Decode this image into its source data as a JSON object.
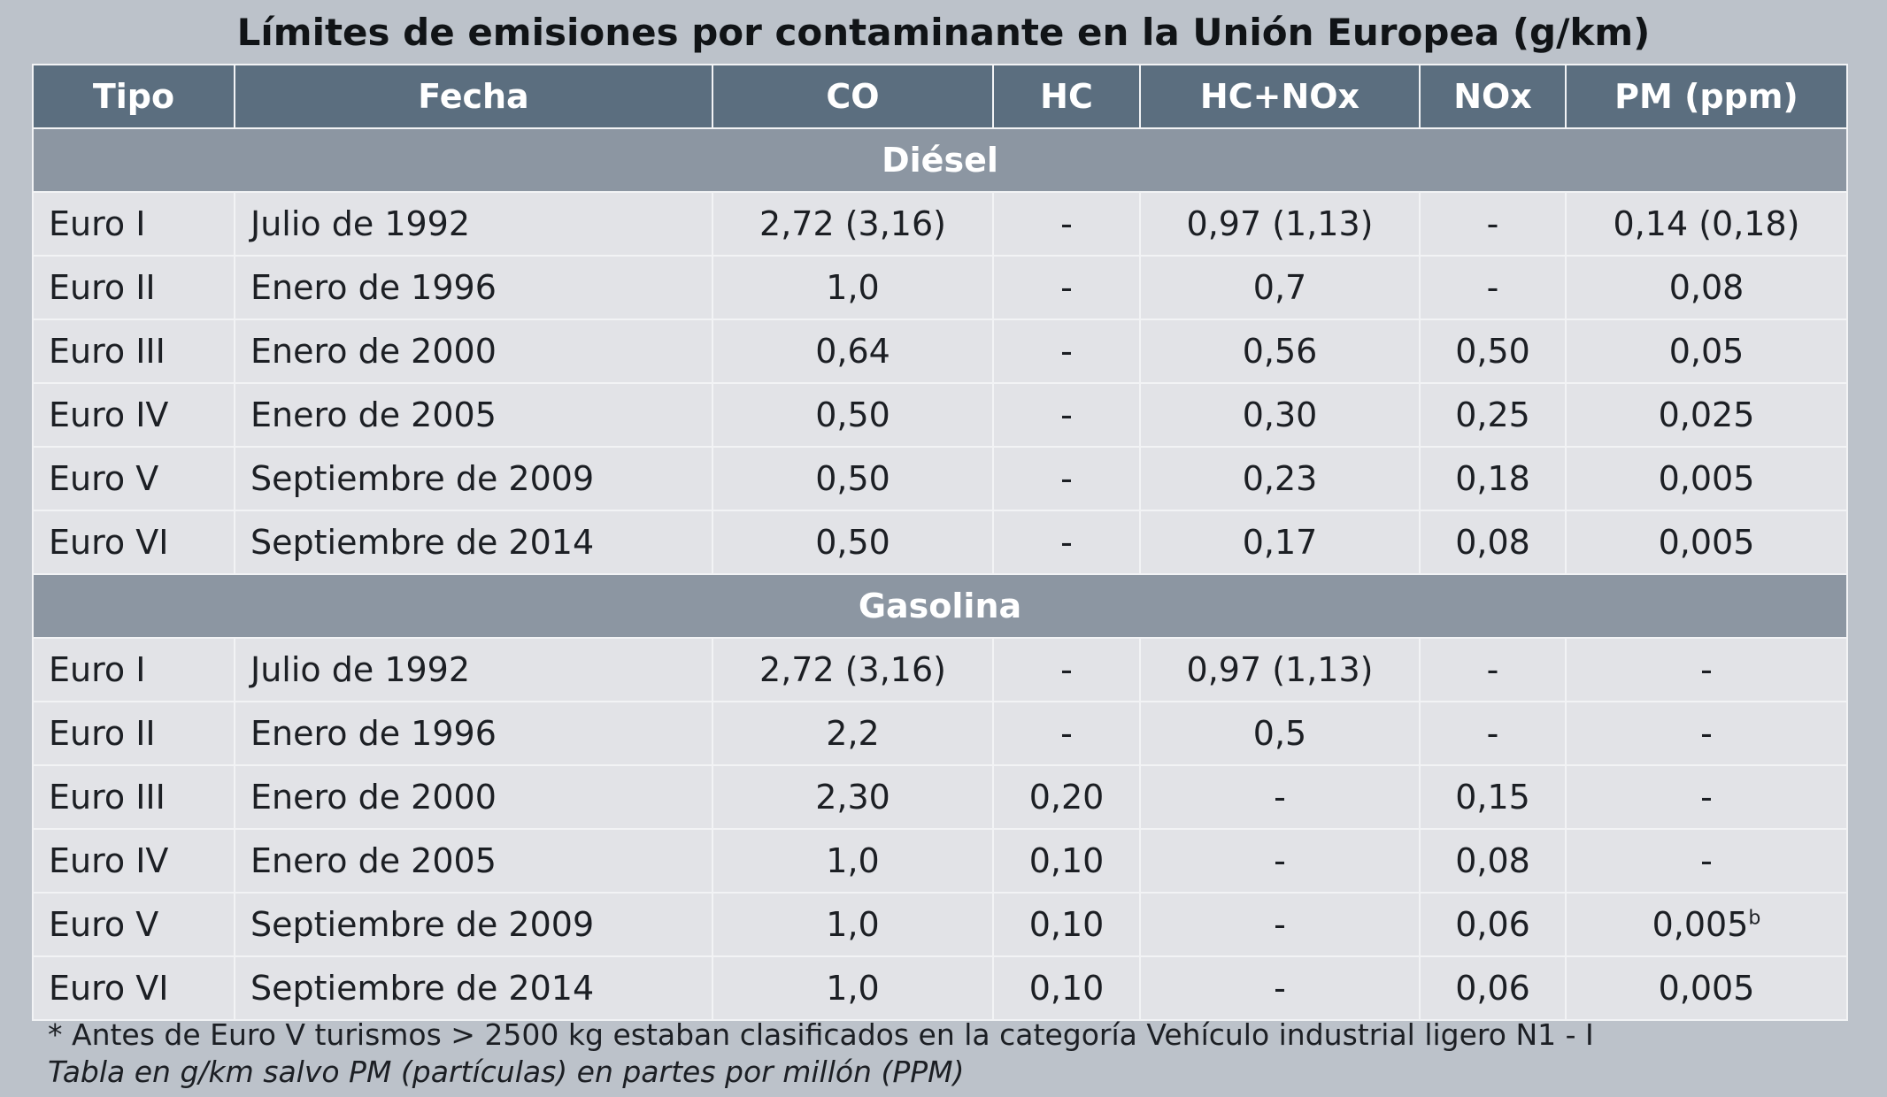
{
  "title": "Límites de emisiones por contaminante en la Unión Europea (g/km)",
  "headers": [
    "Tipo",
    "Fecha",
    "CO",
    "HC",
    "HC+NOx",
    "NOx",
    "PM (ppm)"
  ],
  "sections": [
    {
      "name": "Diésel",
      "rows": [
        [
          "Euro I",
          "Julio de 1992",
          "2,72 (3,16)",
          "-",
          "0,97 (1,13)",
          "-",
          "0,14 (0,18)"
        ],
        [
          "Euro II",
          "Enero de 1996",
          "1,0",
          "-",
          "0,7",
          "-",
          "0,08"
        ],
        [
          "Euro III",
          "Enero de 2000",
          "0,64",
          "-",
          "0,56",
          "0,50",
          "0,05"
        ],
        [
          "Euro IV",
          "Enero de 2005",
          "0,50",
          "-",
          "0,30",
          "0,25",
          "0,025"
        ],
        [
          "Euro V",
          "Septiembre de 2009",
          "0,50",
          "-",
          "0,23",
          "0,18",
          "0,005"
        ],
        [
          "Euro VI",
          "Septiembre de 2014",
          "0,50",
          "-",
          "0,17",
          "0,08",
          "0,005"
        ]
      ]
    },
    {
      "name": "Gasolina",
      "rows": [
        [
          "Euro I",
          "Julio de 1992",
          "2,72 (3,16)",
          "-",
          "0,97 (1,13)",
          "-",
          "-"
        ],
        [
          "Euro II",
          "Enero de 1996",
          "2,2",
          "-",
          "0,5",
          "-",
          "-"
        ],
        [
          "Euro III",
          "Enero de 2000",
          "2,30",
          "0,20",
          "-",
          "0,15",
          "-"
        ],
        [
          "Euro IV",
          "Enero de 2005",
          "1,0",
          "0,10",
          "-",
          "0,08",
          "-"
        ],
        [
          "Euro V",
          "Septiembre de 2009",
          "1,0",
          "0,10",
          "-",
          "0,06",
          "0,005"
        ],
        [
          "Euro VI",
          "Septiembre de 2014",
          "1,0",
          "0,10",
          "-",
          "0,06",
          "0,005"
        ]
      ]
    }
  ],
  "superscript_note": "b",
  "footnotes": [
    "* Antes de Euro V turismos > 2500 kg estaban clasificados en la categoría Vehículo industrial ligero N1 - I",
    "Tabla en g/km salvo PM (partículas) en partes por millón (PPM)"
  ],
  "colors": {
    "page_background": "#bcc2ca",
    "header_background": "#5b6e7f",
    "section_background": "#8c96a2",
    "row_background": "#e2e3e7",
    "border": "#f2f3f5"
  }
}
